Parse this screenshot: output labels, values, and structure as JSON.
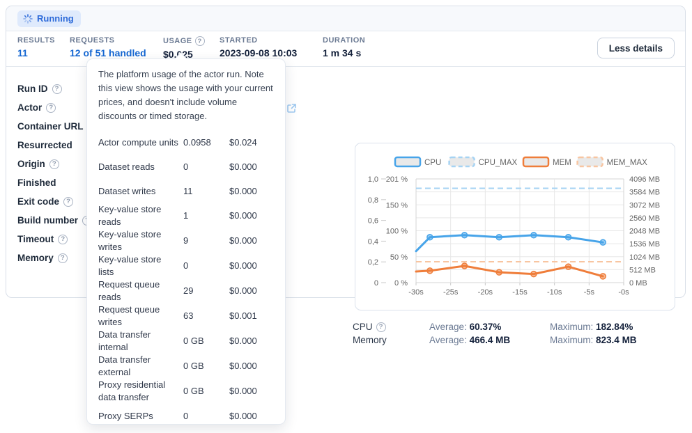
{
  "status": {
    "label": "Running"
  },
  "header_stats": {
    "results": {
      "label": "RESULTS",
      "value": "11"
    },
    "requests": {
      "label": "REQUESTS",
      "value": "12 of 51 handled"
    },
    "usage": {
      "label": "USAGE",
      "value": "$0.025"
    },
    "started": {
      "label": "STARTED",
      "value": "2023-09-08 10:03"
    },
    "duration": {
      "label": "DURATION",
      "value": "1 m 34 s"
    },
    "less_details_label": "Less details"
  },
  "details": {
    "rows": [
      {
        "label": "Run ID",
        "help": true
      },
      {
        "label": "Actor",
        "help": true
      },
      {
        "label": "Container URL",
        "help": true
      },
      {
        "label": "Resurrected",
        "help": false
      },
      {
        "label": "Origin",
        "help": true
      },
      {
        "label": "Finished",
        "help": false
      },
      {
        "label": "Exit code",
        "help": true
      },
      {
        "label": "Build number",
        "help": true
      },
      {
        "label": "Timeout",
        "help": true
      },
      {
        "label": "Memory",
        "help": true
      }
    ]
  },
  "tooltip": {
    "description": "The platform usage of the actor run. Note this view shows the usage with your current prices, and doesn't include volume discounts or timed storage.",
    "rows": [
      {
        "label": "Actor compute units",
        "value": "0.0958",
        "price": "$0.024"
      },
      {
        "label": "Dataset reads",
        "value": "0",
        "price": "$0.000"
      },
      {
        "label": "Dataset writes",
        "value": "11",
        "price": "$0.000"
      },
      {
        "label": "Key-value store reads",
        "value": "1",
        "price": "$0.000"
      },
      {
        "label": "Key-value store writes",
        "value": "9",
        "price": "$0.000"
      },
      {
        "label": "Key-value store lists",
        "value": "0",
        "price": "$0.000"
      },
      {
        "label": "Request queue reads",
        "value": "29",
        "price": "$0.000"
      },
      {
        "label": "Request queue writes",
        "value": "63",
        "price": "$0.001"
      },
      {
        "label": "Data transfer internal",
        "value": "0 GB",
        "price": "$0.000"
      },
      {
        "label": "Data transfer external",
        "value": "0 GB",
        "price": "$0.000"
      },
      {
        "label": "Proxy residential data transfer",
        "value": "0 GB",
        "price": "$0.000"
      },
      {
        "label": "Proxy SERPs",
        "value": "0",
        "price": "$0.000"
      }
    ]
  },
  "usage_stats": {
    "cpu": {
      "label": "CPU",
      "help": true,
      "average_label": "Average:",
      "average": "60.37%",
      "maximum_label": "Maximum:",
      "maximum": "182.84%"
    },
    "memory": {
      "label": "Memory",
      "help": false,
      "average_label": "Average:",
      "average": "466.4 MB",
      "maximum_label": "Maximum:",
      "maximum": "823.4 MB"
    }
  },
  "chart_data": {
    "type": "line",
    "x": [
      -30,
      -28,
      -23,
      -18,
      -13,
      -8,
      -3
    ],
    "series": [
      {
        "name": "CPU",
        "axis": "percent",
        "values": [
          61,
          88,
          92,
          88,
          92,
          88,
          78
        ],
        "color": "#47a4e9",
        "dash": false
      },
      {
        "name": "CPU_MAX",
        "axis": "percent",
        "constant": 182.84,
        "color": "#a6d3f3",
        "dash": true
      },
      {
        "name": "MEM",
        "axis": "mb",
        "values": [
          440,
          470,
          660,
          410,
          340,
          630,
          250
        ],
        "color": "#ef7d3a",
        "dash": false
      },
      {
        "name": "MEM_MAX",
        "axis": "mb",
        "constant": 823.4,
        "color": "#f8c5a1",
        "dash": true
      }
    ],
    "axes": {
      "left_outer_ticks": [
        "1,0",
        "0,8",
        "0,6",
        "0,4",
        "0,2",
        "0"
      ],
      "left_inner_ticks": [
        "201 %",
        "150 %",
        "100 %",
        "50 %",
        "0 %"
      ],
      "percent_max": 201,
      "right_ticks": [
        "4096 MB",
        "3584 MB",
        "3072 MB",
        "2560 MB",
        "2048 MB",
        "1536 MB",
        "1024 MB",
        "512 MB",
        "0 MB"
      ],
      "mb_max": 4096,
      "x_ticks": [
        "-30s",
        "-25s",
        "-20s",
        "-15s",
        "-10s",
        "-5s",
        "-0s"
      ],
      "grid": true
    },
    "legend": [
      "CPU",
      "CPU_MAX",
      "MEM",
      "MEM_MAX"
    ],
    "legend_position": "top"
  },
  "colors": {
    "accent_blue": "#1567d2",
    "badge_bg": "#dfeafc",
    "badge_text": "#2e6bd9",
    "cpu_line": "#47a4e9",
    "cpu_max_line": "#a6d3f3",
    "mem_line": "#ef7d3a",
    "mem_max_line": "#f8c5a1",
    "grid_line": "#e7e7e7",
    "axis_text": "#666666"
  }
}
